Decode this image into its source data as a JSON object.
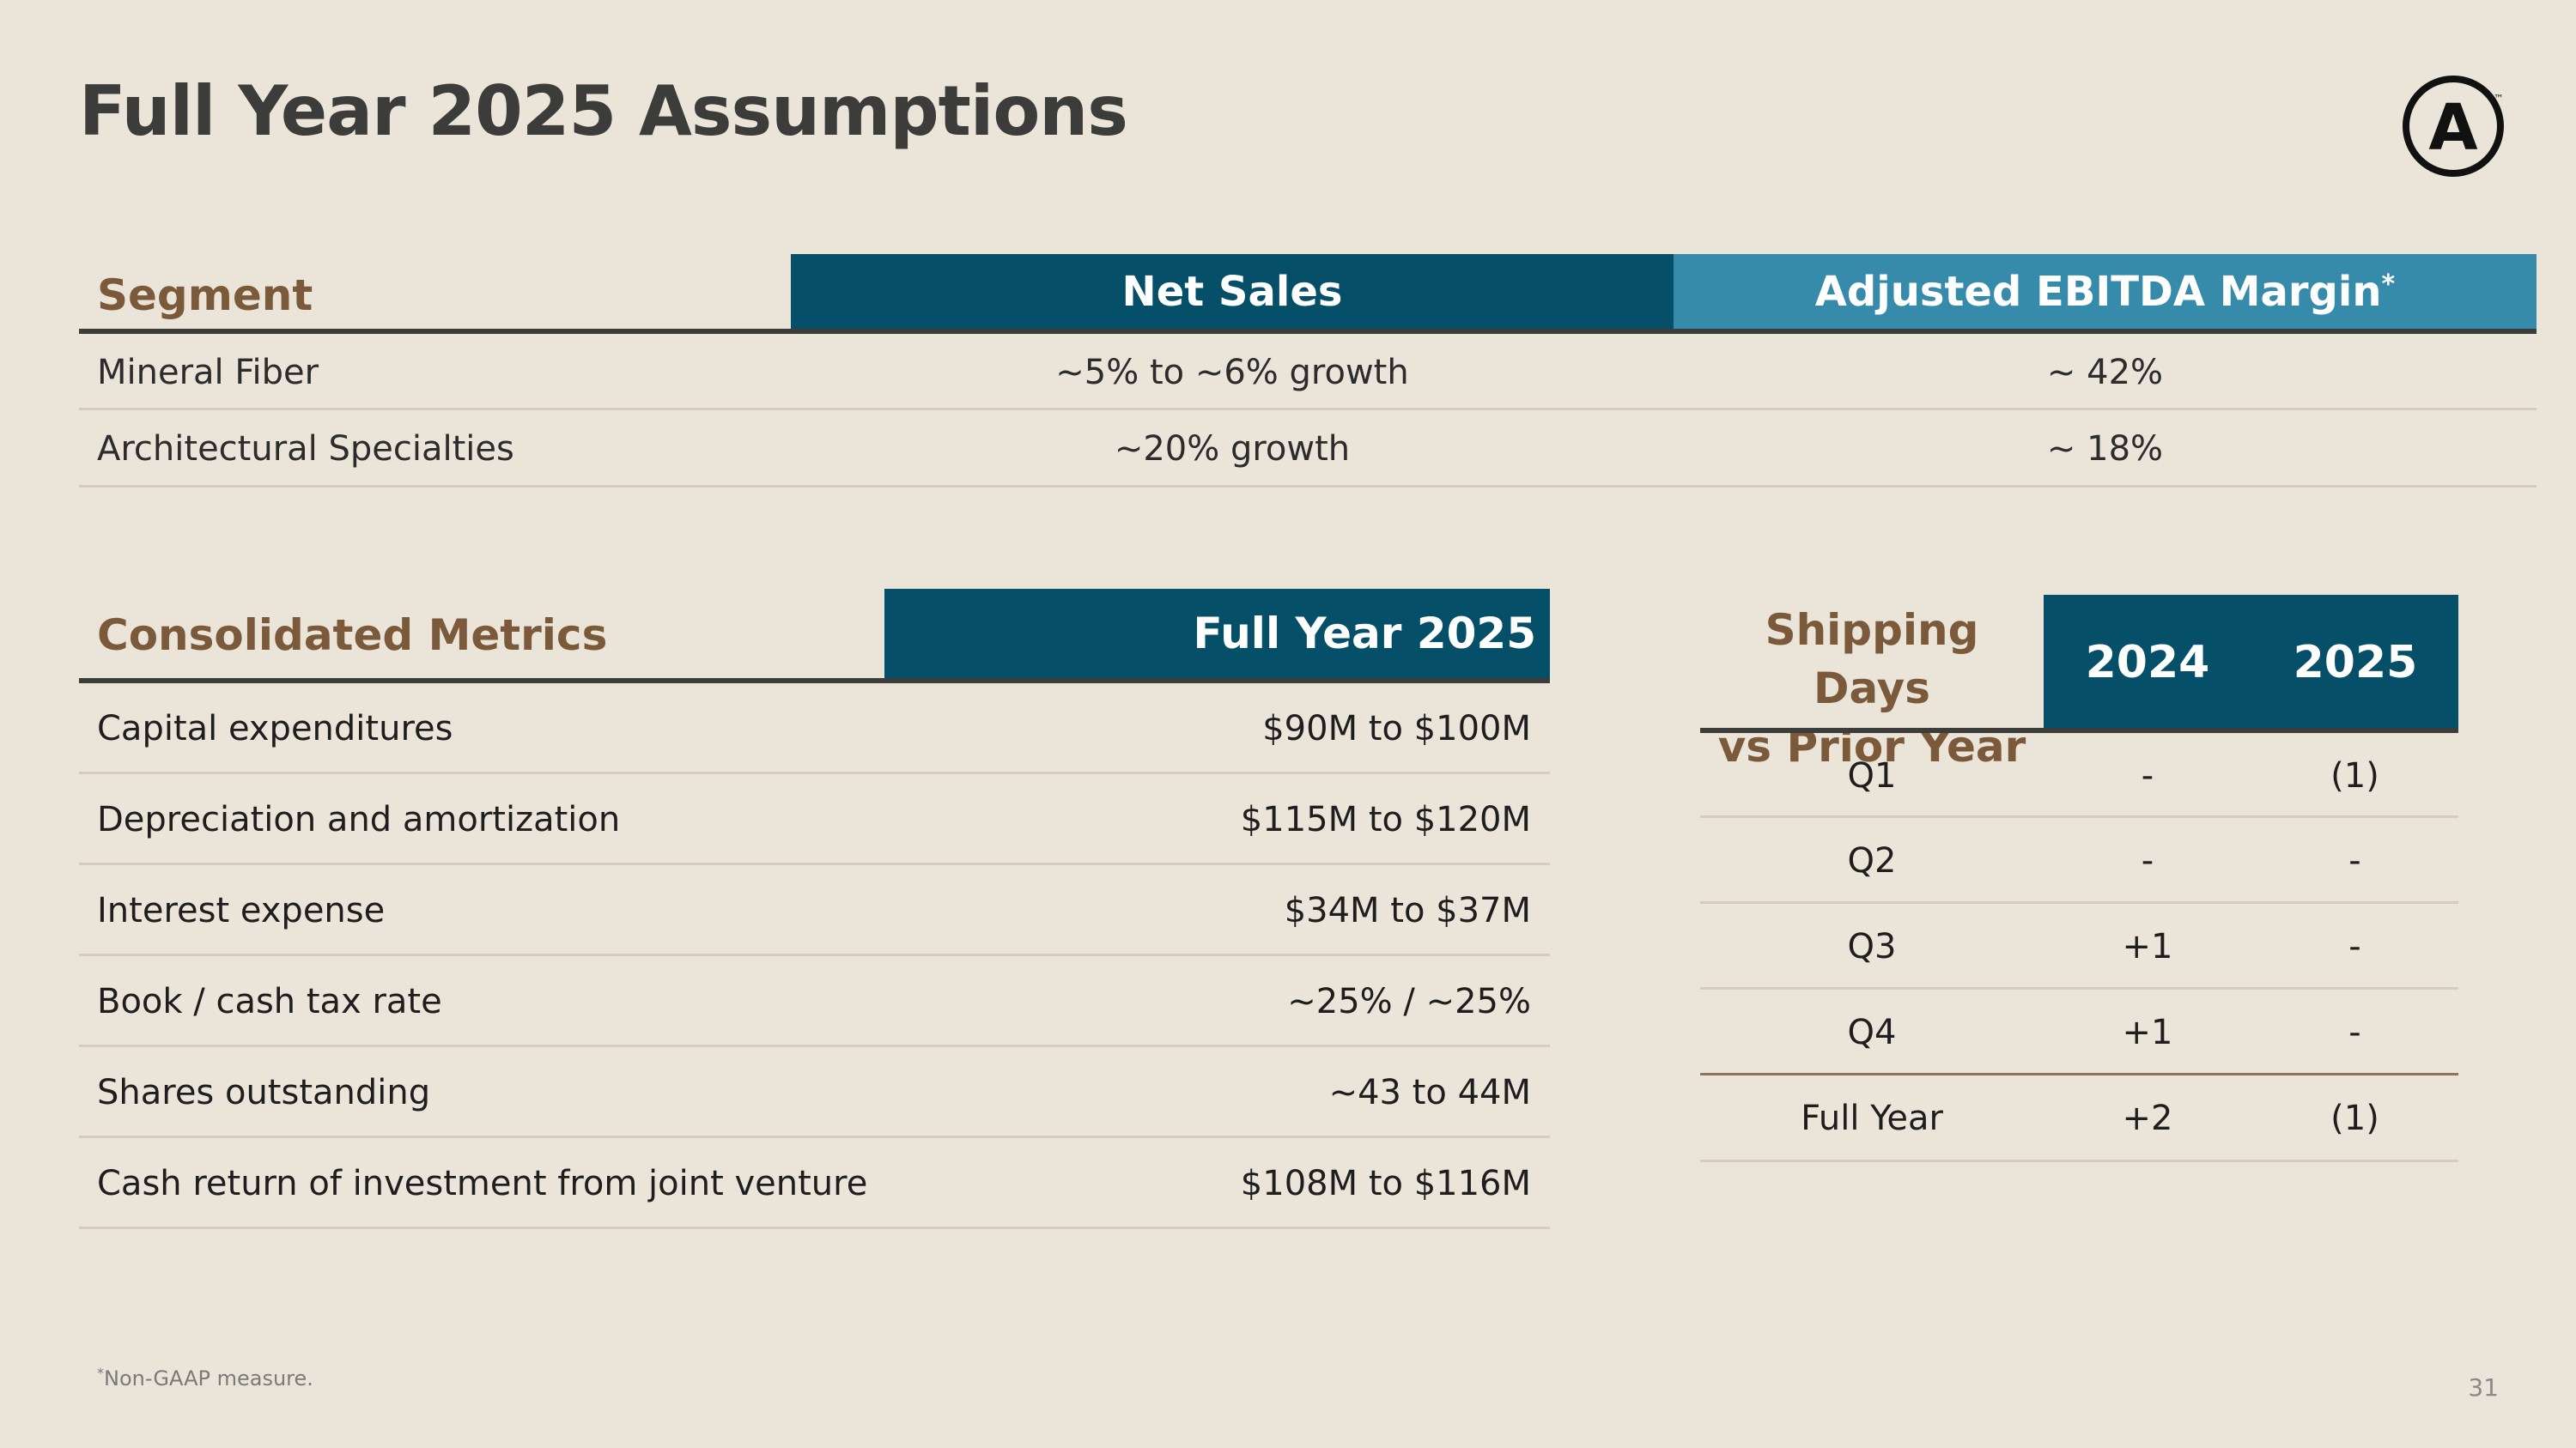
{
  "title": "Full Year 2025 Assumptions",
  "logo": {
    "icon": "circle-a-logo",
    "letter": "A",
    "trademark": "™"
  },
  "segment_table": {
    "header": {
      "segment": "Segment",
      "net_sales": "Net Sales",
      "ebitda": "Adjusted EBITDA Margin",
      "ebitda_mark": "*"
    },
    "rows": [
      {
        "segment": "Mineral Fiber",
        "net_sales": "~5% to ~6% growth",
        "ebitda": "~ 42%"
      },
      {
        "segment": "Architectural Specialties",
        "net_sales": "~20% growth",
        "ebitda": "~ 18%"
      }
    ]
  },
  "consolidated": {
    "header": {
      "label": "Consolidated Metrics",
      "value": "Full Year 2025"
    },
    "rows": [
      {
        "label": "Capital expenditures",
        "value": "$90M to $100M"
      },
      {
        "label": "Depreciation and amortization",
        "value": "$115M to $120M"
      },
      {
        "label": "Interest expense",
        "value": "$34M to $37M"
      },
      {
        "label": "Book / cash tax rate",
        "value": "~25% / ~25%"
      },
      {
        "label": "Shares outstanding",
        "value": "~43 to 44M"
      },
      {
        "label": "Cash return of investment from joint venture",
        "value": "$108M to $116M"
      }
    ]
  },
  "shipping_days": {
    "header": {
      "line1": "Shipping Days",
      "line2": "vs Prior Year",
      "y2024": "2024",
      "y2025": "2025"
    },
    "rows": [
      {
        "period": "Q1",
        "y2024": "-",
        "y2025": "(1)"
      },
      {
        "period": "Q2",
        "y2024": "-",
        "y2025": "-"
      },
      {
        "period": "Q3",
        "y2024": "+1",
        "y2025": "-"
      },
      {
        "period": "Q4",
        "y2024": "+1",
        "y2025": "-"
      },
      {
        "period": "Full Year",
        "y2024": "+2",
        "y2025": "(1)"
      }
    ]
  },
  "footnote": {
    "mark": "*",
    "text": "Non-GAAP measure."
  },
  "page_number": "31",
  "colors": {
    "background": "#ebe4d9",
    "header_dark_teal": "#054f69",
    "header_light_teal": "#368bab",
    "section_label_brown": "#7a5a3a",
    "title_gray": "#3c3c3a"
  }
}
